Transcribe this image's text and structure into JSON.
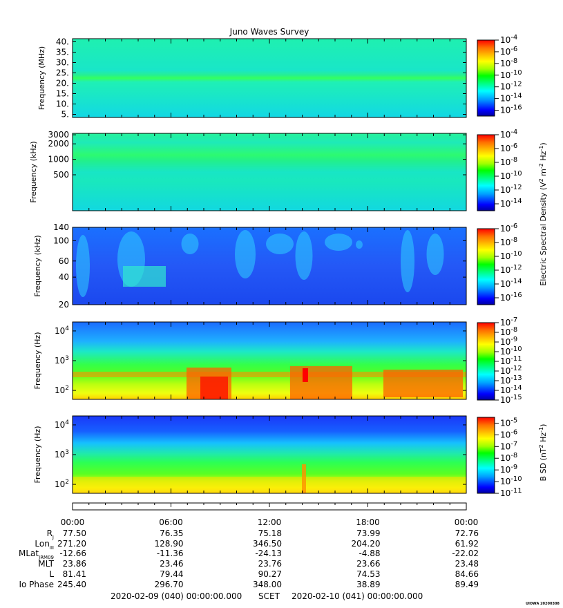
{
  "title": "Juno Waves Survey",
  "colors": {
    "spectrum": [
      "#0000a0",
      "#0000ff",
      "#00a0ff",
      "#00ffff",
      "#00ff80",
      "#00ff00",
      "#a0ff00",
      "#ffff00",
      "#ffc000",
      "#ff7000",
      "#ff0000"
    ]
  },
  "chart_data": [
    {
      "type": "heatmap",
      "panel": "panel-1",
      "ylabel": "Frequency (MHz)",
      "ytick_labels": [
        "40.",
        "35.",
        "30.",
        "25.",
        "20.",
        "15.",
        "10.",
        "5."
      ],
      "ytick_values": [
        40,
        35,
        30,
        25,
        20,
        15,
        10,
        5
      ],
      "ylim": [
        3.5,
        41.5
      ],
      "yscale": "linear",
      "colorbar": {
        "labels": [
          "10-4",
          "10-6",
          "10-8",
          "10-10",
          "10-12",
          "10-14",
          "10-16"
        ],
        "exponents": [
          "-4",
          "-6",
          "-8",
          "-10",
          "-12",
          "-14",
          "-16"
        ],
        "range": [
          -17,
          -4
        ]
      },
      "features": "uniform background ~1e-12 with brighter band near 21 MHz"
    },
    {
      "type": "heatmap",
      "panel": "panel-2",
      "ylabel": "Frequency (kHz)",
      "ytick_labels": [
        "3000",
        "2000",
        "1000",
        "500"
      ],
      "ytick_values": [
        3000,
        2000,
        1000,
        500
      ],
      "ylim": [
        100,
        3200
      ],
      "yscale": "log",
      "colorbar": {
        "labels": [
          "10-4",
          "10-6",
          "10-8",
          "10-10",
          "10-12",
          "10-14"
        ],
        "exponents": [
          "-4",
          "-6",
          "-8",
          "-10",
          "-12",
          "-14"
        ],
        "range": [
          -15,
          -4
        ]
      },
      "features": "brighter band near 1000 kHz"
    },
    {
      "type": "heatmap",
      "panel": "panel-3",
      "ylabel": "Frequency (kHz)",
      "ytick_labels": [
        "140",
        "100",
        "60",
        "40",
        "20"
      ],
      "ytick_values": [
        140,
        100,
        60,
        40,
        20
      ],
      "ylim": [
        20,
        140
      ],
      "yscale": "log",
      "colorbar": {
        "labels": [
          "10-6",
          "10-8",
          "10-10",
          "10-12",
          "10-14",
          "10-16"
        ],
        "exponents": [
          "-6",
          "-8",
          "-10",
          "-12",
          "-14",
          "-16"
        ],
        "range": [
          -17,
          -6
        ]
      },
      "shared_colorbar_label": "Electric Spectral Density (V2 m-2 Hz-1)",
      "features": "blue background with cyan bursts"
    },
    {
      "type": "heatmap",
      "panel": "panel-4",
      "ylabel": "Frequency (Hz)",
      "ytick_labels": [
        "10",
        "10",
        "10"
      ],
      "ytick_exponents": [
        "4",
        "3",
        "2"
      ],
      "ytick_values": [
        10000,
        1000,
        100
      ],
      "ylim": [
        50,
        20000
      ],
      "yscale": "log",
      "colorbar": {
        "labels": [
          "10-7",
          "10-8",
          "10-9",
          "10-10",
          "10-11",
          "10-12",
          "10-13",
          "10-14",
          "10-15"
        ],
        "exponents": [
          "-7",
          "-8",
          "-9",
          "-10",
          "-11",
          "-12",
          "-13",
          "-14",
          "-15"
        ],
        "range": [
          -15,
          -7
        ]
      },
      "features": "green/yellow/red emission below ~3 kHz"
    },
    {
      "type": "heatmap",
      "panel": "panel-5",
      "ylabel": "Frequency (Hz)",
      "ytick_labels": [
        "10",
        "10",
        "10"
      ],
      "ytick_exponents": [
        "4",
        "3",
        "2"
      ],
      "ytick_values": [
        10000,
        1000,
        100
      ],
      "ylim": [
        50,
        20000
      ],
      "yscale": "log",
      "colorbar": {
        "labels": [
          "10-5",
          "10-6",
          "10-7",
          "10-8",
          "10-9",
          "10-10",
          "10-11"
        ],
        "exponents": [
          "-5",
          "-6",
          "-7",
          "-8",
          "-9",
          "-10",
          "-11"
        ],
        "range": [
          -11,
          -4.5
        ]
      },
      "colorbar_label": "B SD (nT2 Hz-1)",
      "features": "blue at high freq, green middle, yellow near 100 Hz"
    }
  ],
  "time_axis": {
    "labels": [
      "00:00",
      "06:00",
      "12:00",
      "18:00",
      "00:00"
    ],
    "rows": [
      {
        "name": "RJ",
        "base": "R",
        "sub": "J",
        "values": [
          "77.50",
          "76.35",
          "75.18",
          "73.99",
          "72.76"
        ]
      },
      {
        "name": "LonIII",
        "base": "Lon",
        "sub": "III",
        "values": [
          "271.20",
          "128.90",
          "346.50",
          "204.20",
          "61.92"
        ]
      },
      {
        "name": "MLatJRM09",
        "base": "MLat",
        "sub": "JRM09",
        "values": [
          "-12.66",
          "-11.36",
          "-24.13",
          "-4.88",
          "-22.02"
        ]
      },
      {
        "name": "MLT",
        "base": "MLT",
        "sub": "",
        "values": [
          "23.86",
          "23.46",
          "23.76",
          "23.66",
          "23.48"
        ]
      },
      {
        "name": "L",
        "base": "L",
        "sub": "",
        "values": [
          "81.41",
          "79.44",
          "90.27",
          "74.53",
          "84.66"
        ]
      },
      {
        "name": "Io Phase",
        "base": "Io Phase",
        "sub": "",
        "values": [
          "245.40",
          "296.70",
          "348.00",
          "38.89",
          "89.49"
        ]
      }
    ]
  },
  "footer": {
    "start": "2020-02-09 (040) 00:00:00.000",
    "scet": "SCET",
    "end": "2020-02-10 (041) 00:00:00.000",
    "stamp": "UIOWA 20200308"
  },
  "colorbar_label_electric": {
    "text": "Electric Spectral Density (V2 m-2 Hz-1)"
  },
  "colorbar_label_magnetic": {
    "text": "B SD (nT2 Hz-1)"
  }
}
